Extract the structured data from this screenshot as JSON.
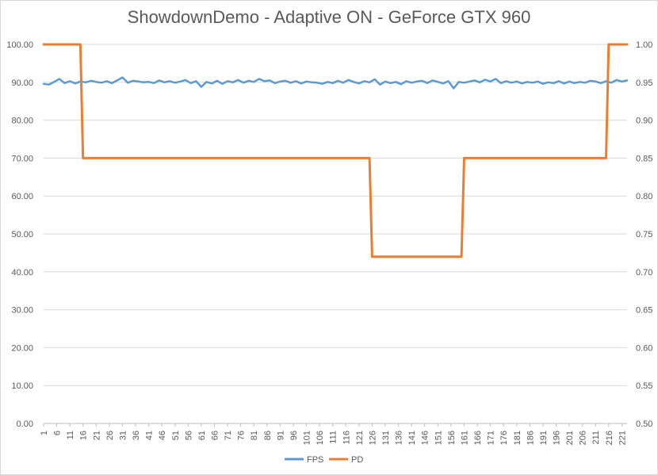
{
  "chart_data": {
    "type": "line",
    "title": "ShowdownDemo - Adaptive ON - GeForce GTX 960",
    "xlabel": "",
    "ylabel": "",
    "x_range": [
      1,
      223
    ],
    "x_tick_labels": [
      "1",
      "6",
      "11",
      "16",
      "21",
      "26",
      "31",
      "36",
      "41",
      "46",
      "51",
      "56",
      "61",
      "66",
      "71",
      "76",
      "81",
      "86",
      "91",
      "96",
      "101",
      "106",
      "111",
      "116",
      "121",
      "126",
      "131",
      "136",
      "141",
      "146",
      "151",
      "156",
      "161",
      "166",
      "171",
      "176",
      "181",
      "186",
      "191",
      "196",
      "201",
      "206",
      "211",
      "216",
      "221"
    ],
    "y_left": {
      "range": [
        0,
        100
      ],
      "tick_labels": [
        "0.00",
        "10.00",
        "20.00",
        "30.00",
        "40.00",
        "50.00",
        "60.00",
        "70.00",
        "80.00",
        "90.00",
        "100.00"
      ]
    },
    "y_right": {
      "range": [
        0.5,
        1.0
      ],
      "tick_labels": [
        "0.50",
        "0.55",
        "0.60",
        "0.65",
        "0.70",
        "0.75",
        "0.80",
        "0.85",
        "0.90",
        "0.95",
        "1.00"
      ]
    },
    "grid": true,
    "legend_position": "bottom",
    "series": [
      {
        "name": "FPS",
        "axis": "left",
        "color": "#5b9bd5",
        "points": [
          [
            1,
            89.6
          ],
          [
            3,
            89.4
          ],
          [
            5,
            90.1
          ],
          [
            7,
            90.9
          ],
          [
            9,
            89.8
          ],
          [
            11,
            90.3
          ],
          [
            13,
            89.7
          ],
          [
            15,
            90.2
          ],
          [
            17,
            90.0
          ],
          [
            19,
            90.4
          ],
          [
            21,
            90.1
          ],
          [
            23,
            89.9
          ],
          [
            25,
            90.3
          ],
          [
            27,
            89.8
          ],
          [
            29,
            90.5
          ],
          [
            31,
            91.3
          ],
          [
            33,
            89.9
          ],
          [
            35,
            90.4
          ],
          [
            37,
            90.2
          ],
          [
            39,
            90.0
          ],
          [
            41,
            90.1
          ],
          [
            43,
            89.8
          ],
          [
            45,
            90.5
          ],
          [
            47,
            90.0
          ],
          [
            49,
            90.3
          ],
          [
            51,
            89.9
          ],
          [
            53,
            90.2
          ],
          [
            55,
            90.6
          ],
          [
            57,
            89.8
          ],
          [
            59,
            90.3
          ],
          [
            61,
            88.8
          ],
          [
            63,
            90.1
          ],
          [
            65,
            89.7
          ],
          [
            67,
            90.4
          ],
          [
            69,
            89.6
          ],
          [
            71,
            90.3
          ],
          [
            73,
            90.0
          ],
          [
            75,
            90.6
          ],
          [
            77,
            89.9
          ],
          [
            79,
            90.4
          ],
          [
            81,
            90.1
          ],
          [
            83,
            90.9
          ],
          [
            85,
            90.3
          ],
          [
            87,
            90.5
          ],
          [
            89,
            89.8
          ],
          [
            91,
            90.2
          ],
          [
            93,
            90.4
          ],
          [
            95,
            89.9
          ],
          [
            97,
            90.3
          ],
          [
            99,
            89.7
          ],
          [
            101,
            90.2
          ],
          [
            103,
            90.0
          ],
          [
            105,
            89.9
          ],
          [
            107,
            89.6
          ],
          [
            109,
            90.1
          ],
          [
            111,
            89.8
          ],
          [
            113,
            90.4
          ],
          [
            115,
            89.9
          ],
          [
            117,
            90.6
          ],
          [
            119,
            90.1
          ],
          [
            121,
            89.7
          ],
          [
            123,
            90.3
          ],
          [
            125,
            90.0
          ],
          [
            127,
            90.8
          ],
          [
            129,
            89.4
          ],
          [
            131,
            90.2
          ],
          [
            133,
            89.8
          ],
          [
            135,
            90.1
          ],
          [
            137,
            89.5
          ],
          [
            139,
            90.3
          ],
          [
            141,
            89.9
          ],
          [
            143,
            90.2
          ],
          [
            145,
            90.4
          ],
          [
            147,
            89.8
          ],
          [
            149,
            90.5
          ],
          [
            151,
            90.1
          ],
          [
            153,
            89.7
          ],
          [
            155,
            90.3
          ],
          [
            157,
            88.4
          ],
          [
            159,
            90.1
          ],
          [
            161,
            89.9
          ],
          [
            163,
            90.2
          ],
          [
            165,
            90.5
          ],
          [
            167,
            90.0
          ],
          [
            169,
            90.7
          ],
          [
            171,
            90.2
          ],
          [
            173,
            90.9
          ],
          [
            175,
            89.8
          ],
          [
            177,
            90.3
          ],
          [
            179,
            89.9
          ],
          [
            181,
            90.2
          ],
          [
            183,
            89.7
          ],
          [
            185,
            90.1
          ],
          [
            187,
            89.9
          ],
          [
            189,
            90.2
          ],
          [
            191,
            89.6
          ],
          [
            193,
            90.0
          ],
          [
            195,
            89.8
          ],
          [
            197,
            90.3
          ],
          [
            199,
            89.7
          ],
          [
            201,
            90.2
          ],
          [
            203,
            89.8
          ],
          [
            205,
            90.1
          ],
          [
            207,
            89.9
          ],
          [
            209,
            90.4
          ],
          [
            211,
            90.2
          ],
          [
            213,
            89.8
          ],
          [
            215,
            90.3
          ],
          [
            217,
            89.9
          ],
          [
            219,
            90.6
          ],
          [
            221,
            90.2
          ],
          [
            223,
            90.5
          ]
        ]
      },
      {
        "name": "PD",
        "axis": "right",
        "color": "#ed7d31",
        "points": [
          [
            1,
            1.0
          ],
          [
            15,
            1.0
          ],
          [
            16,
            0.85
          ],
          [
            125,
            0.85
          ],
          [
            126,
            0.72
          ],
          [
            160,
            0.72
          ],
          [
            161,
            0.85
          ],
          [
            215,
            0.85
          ],
          [
            216,
            1.0
          ],
          [
            223,
            1.0
          ]
        ]
      }
    ]
  }
}
